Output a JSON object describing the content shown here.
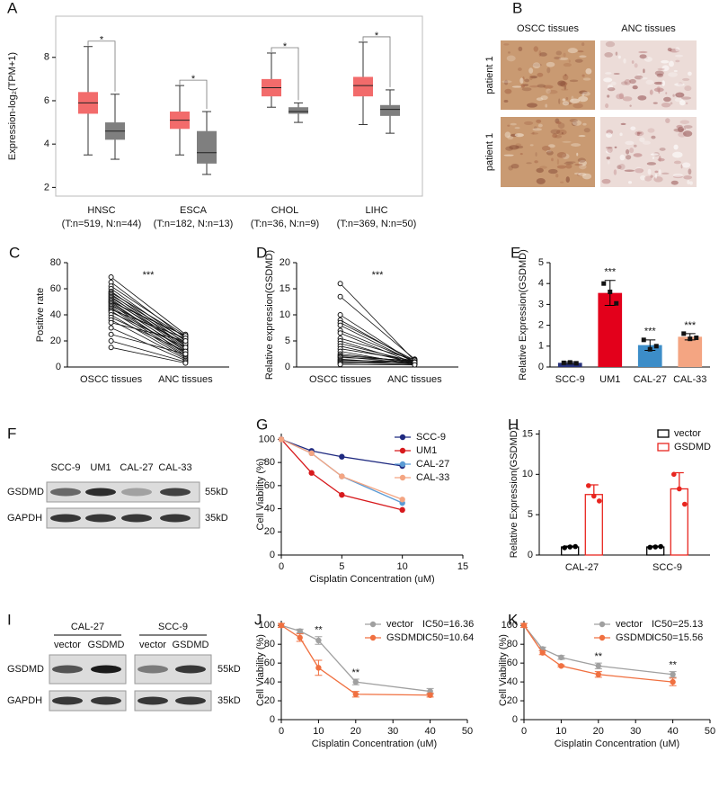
{
  "chart_data": [
    {
      "type": "box",
      "panel": "A",
      "ylabel": "Expression-log₂(TPM+1)",
      "categories": [
        "HNSC",
        "ESCA",
        "CHOL",
        "LIHC"
      ],
      "sample_sizes": [
        "(T:n=519, N:n=44)",
        "(T:n=182, N:n=13)",
        "(T:n=36, N:n=9)",
        "(T:n=369, N:n=50)"
      ],
      "series": [
        {
          "color": "#f26b6b",
          "min": [
            3.5,
            3.5,
            5.7,
            4.9
          ],
          "q1": [
            5.4,
            4.7,
            6.2,
            6.2
          ],
          "median": [
            5.9,
            5.1,
            6.6,
            6.7
          ],
          "q3": [
            6.4,
            5.5,
            7.0,
            7.1
          ],
          "max": [
            8.5,
            6.7,
            8.2,
            8.7
          ]
        },
        {
          "color": "#7f7f7f",
          "min": [
            3.3,
            2.6,
            5.0,
            4.5
          ],
          "q1": [
            4.2,
            3.1,
            5.4,
            5.3
          ],
          "median": [
            4.6,
            3.6,
            5.5,
            5.6
          ],
          "q3": [
            5.0,
            4.6,
            5.7,
            5.8
          ],
          "max": [
            6.3,
            5.5,
            5.9,
            6.5
          ]
        }
      ],
      "annotations": [
        "*",
        "*",
        "*",
        "*"
      ],
      "annotation_color": "#ff0000",
      "ylim": [
        1.6,
        9.9
      ],
      "yticks": [
        2,
        4,
        6,
        8
      ]
    },
    {
      "type": "paired",
      "panel": "C",
      "ylabel": "Positive rate",
      "categories": [
        "OSCC tissues",
        "ANC tissues"
      ],
      "tumor": [
        69,
        65,
        62,
        60,
        58,
        57,
        56,
        55,
        54,
        53,
        52,
        51,
        50,
        50,
        49,
        48,
        47,
        46,
        45,
        44,
        43,
        42,
        40,
        38,
        36,
        34,
        30,
        25,
        20,
        15
      ],
      "normal": [
        25,
        22,
        24,
        20,
        18,
        23,
        16,
        21,
        15,
        19,
        14,
        17,
        12,
        24,
        13,
        10,
        18,
        11,
        9,
        22,
        8,
        15,
        7,
        12,
        6,
        20,
        5,
        10,
        4,
        3
      ],
      "annotation": "***",
      "ylim": [
        0,
        80
      ],
      "yticks": [
        0,
        20,
        40,
        60,
        80
      ]
    },
    {
      "type": "paired",
      "panel": "D",
      "ylabel": "Relative expression(GSDMD)",
      "categories": [
        "OSCC tissues",
        "ANC tissues"
      ],
      "tumor": [
        16,
        13.5,
        10,
        9,
        8.5,
        8,
        7,
        6.5,
        5.5,
        5,
        4.5,
        4,
        3.5,
        3,
        2.5,
        2.2,
        2,
        1.8,
        1.5,
        1.3,
        1.1,
        0.9,
        0.7,
        0.5
      ],
      "normal": [
        1.2,
        1.5,
        0.8,
        1,
        1.3,
        0.9,
        1.1,
        0.7,
        1.4,
        0.6,
        1,
        0.8,
        1.2,
        0.5,
        0.9,
        1.1,
        0.7,
        1.3,
        0.6,
        1,
        0.8,
        0.5,
        0.9,
        0.4
      ],
      "annotation": "***",
      "ylim": [
        0,
        20
      ],
      "yticks": [
        0,
        5,
        10,
        15,
        20
      ]
    },
    {
      "type": "bar",
      "panel": "E",
      "ylabel": "Relative Expression(GSDMD)",
      "categories": [
        "SCC-9",
        "UM1",
        "CAL-27",
        "CAL-33"
      ],
      "values": [
        0.2,
        3.55,
        1.05,
        1.45
      ],
      "errors": [
        0.05,
        0.6,
        0.25,
        0.15
      ],
      "points": [
        [
          0.2,
          0.22,
          0.18
        ],
        [
          4.0,
          3.6,
          3.05
        ],
        [
          1.3,
          0.85,
          1.0
        ],
        [
          1.6,
          1.35,
          1.4
        ]
      ],
      "colors": [
        "#26307a",
        "#e3001b",
        "#3c8dc8",
        "#f4a582"
      ],
      "annotations": [
        null,
        "***",
        "***",
        "***"
      ],
      "ylim": [
        0,
        5
      ],
      "yticks": [
        0,
        1,
        2,
        3,
        4,
        5
      ]
    },
    {
      "type": "line",
      "panel": "G",
      "xlabel": "Cisplatin Concentration  (uM)",
      "ylabel": "Cell Viability (%)",
      "x": [
        0,
        2.5,
        5,
        10
      ],
      "series": [
        {
          "name": "SCC-9",
          "color": "#1f2a80",
          "values": [
            100,
            90,
            85,
            77
          ]
        },
        {
          "name": "UM1",
          "color": "#d7191c",
          "values": [
            100,
            71,
            52,
            39
          ]
        },
        {
          "name": "CAL-27",
          "color": "#5b9bd5",
          "values": [
            100,
            88,
            68,
            45
          ]
        },
        {
          "name": "CAL-33",
          "color": "#f4a582",
          "values": [
            100,
            88,
            68,
            48
          ]
        }
      ],
      "xlim": [
        0,
        15
      ],
      "xticks": [
        0,
        5,
        10,
        15
      ],
      "ylim": [
        0,
        105
      ],
      "yticks": [
        0,
        20,
        40,
        60,
        80,
        100
      ],
      "legend": "upper right"
    },
    {
      "type": "groupbar",
      "panel": "H",
      "ylabel": "Relative Expression(GSDMD)",
      "categories": [
        "CAL-27",
        "SCC-9"
      ],
      "series": [
        {
          "name": "vector",
          "color": "#000000",
          "values": [
            1,
            1
          ],
          "errors": [
            0.1,
            0.1
          ],
          "points": [
            [
              0.9,
              1.0,
              1.05
            ],
            [
              0.95,
              1.0,
              1.05
            ]
          ]
        },
        {
          "name": "GSDMD",
          "color": "#e8251f",
          "values": [
            7.5,
            8.2
          ],
          "errors": [
            1.2,
            2.0
          ],
          "points": [
            [
              8.6,
              7.3,
              6.7
            ],
            [
              10,
              8.2,
              6.3
            ]
          ]
        }
      ],
      "ylim": [
        0,
        15.5
      ],
      "yticks": [
        0,
        5,
        10,
        15
      ],
      "legend": "upper right"
    },
    {
      "type": "line",
      "panel": "J",
      "xlabel": "Cisplatin Concentration (uM)",
      "ylabel": "Cell Viability (%)",
      "x": [
        0,
        5,
        10,
        20,
        40
      ],
      "series": [
        {
          "name": "vector",
          "legend_note": "IC50=16.36",
          "color": "#a0a0a0",
          "values": [
            100,
            94,
            84,
            40,
            30
          ],
          "errors": [
            2,
            2,
            4,
            3,
            3
          ]
        },
        {
          "name": "GSDMD",
          "legend_note": "IC50=10.64",
          "color": "#f07040",
          "values": [
            100,
            87,
            55,
            27,
            26
          ],
          "errors": [
            2,
            4,
            8,
            3,
            2
          ]
        }
      ],
      "annotations": [
        null,
        null,
        "**",
        "**",
        null
      ],
      "xlim": [
        0,
        50
      ],
      "xticks": [
        0,
        10,
        20,
        30,
        40,
        50
      ],
      "ylim": [
        0,
        105
      ],
      "yticks": [
        0,
        20,
        40,
        60,
        80,
        100
      ],
      "legend": "upper right"
    },
    {
      "type": "line",
      "panel": "K",
      "xlabel": "Cisplatin Concentration (uM)",
      "ylabel": "Cell Viability (%)",
      "x": [
        0,
        5,
        10,
        20,
        40
      ],
      "series": [
        {
          "name": "vector",
          "legend_note": "IC50=25.13",
          "color": "#a0a0a0",
          "values": [
            100,
            75,
            66,
            57,
            48
          ],
          "errors": [
            2,
            2,
            2,
            3,
            3
          ]
        },
        {
          "name": "GSDMD",
          "legend_note": "IC50=15.56",
          "color": "#f07040",
          "values": [
            100,
            71,
            57,
            48,
            40
          ],
          "errors": [
            2,
            2,
            1,
            3,
            4
          ]
        }
      ],
      "annotations": [
        null,
        null,
        null,
        "**",
        "**"
      ],
      "xlim": [
        0,
        50
      ],
      "xticks": [
        0,
        10,
        20,
        30,
        40,
        50
      ],
      "ylim": [
        0,
        105
      ],
      "yticks": [
        0,
        20,
        40,
        60,
        80,
        100
      ],
      "legend": "upper right"
    }
  ],
  "ihc": {
    "panel": "B",
    "columns": [
      "OSCC tissues",
      "ANC tissues"
    ],
    "rows": [
      "patient 1",
      "patient 1"
    ]
  },
  "blot_f": {
    "panel": "F",
    "lanes": [
      "SCC-9",
      "UM1",
      "CAL-27",
      "CAL-33"
    ],
    "proteins": [
      "GSDMD",
      "GAPDH"
    ],
    "sizes": [
      "55kD",
      "35kD"
    ]
  },
  "blot_i": {
    "panel": "I",
    "groups": [
      "CAL-27",
      "SCC-9"
    ],
    "lanes": [
      "vector",
      "GSDMD",
      "vector",
      "GSDMD"
    ],
    "proteins": [
      "GSDMD",
      "GAPDH"
    ],
    "sizes": [
      "55kD",
      "35kD"
    ]
  }
}
